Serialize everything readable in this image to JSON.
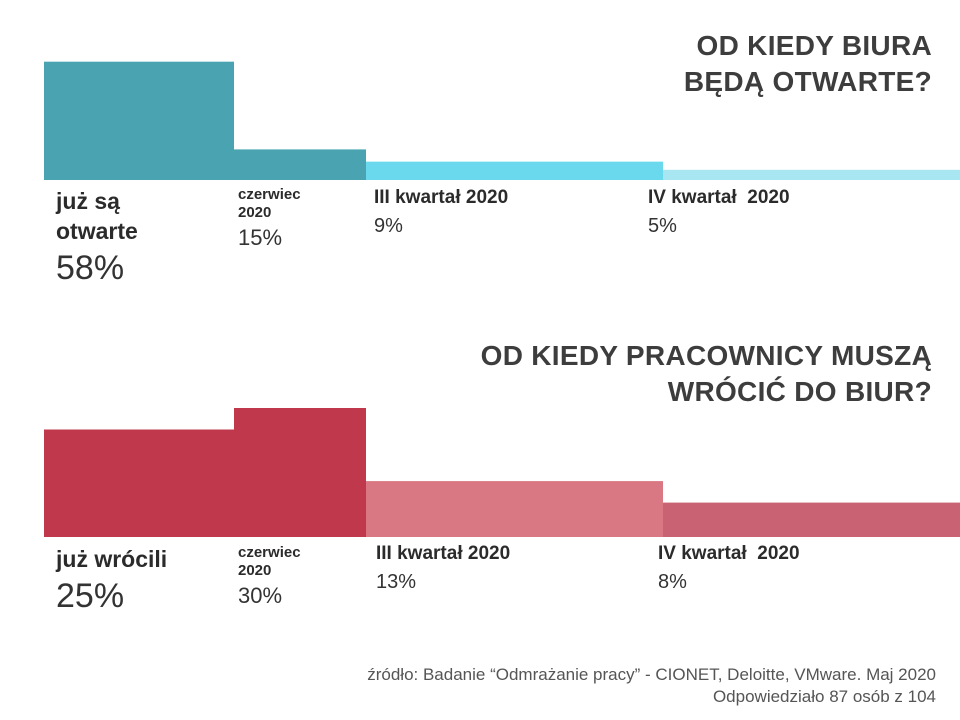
{
  "charts": [
    {
      "title_lines": [
        "OD KIEDY BIURA",
        "BĘDĄ OTWARTE?"
      ],
      "labels": [
        {
          "category": "już są otwarte",
          "value": "58%"
        },
        {
          "category": "czerwiec 2020",
          "value": "15%"
        },
        {
          "category": "III kwartał 2020",
          "value": "9%"
        },
        {
          "category": "IV kwartał  2020",
          "value": "5%"
        }
      ]
    },
    {
      "title_lines": [
        "OD KIEDY PRACOWNICY MUSZĄ",
        "WRÓCIĆ DO BIUR?"
      ],
      "labels": [
        {
          "category": "już wrócili",
          "value": "25%"
        },
        {
          "category": "czerwiec 2020",
          "value": "30%"
        },
        {
          "category": "III kwartał 2020",
          "value": "13%"
        },
        {
          "category": "IV kwartał  2020",
          "value": "8%"
        }
      ]
    }
  ],
  "source": {
    "line1": "źródło: Badanie “Odmrażanie pracy” - CIONET, Deloitte, VMware. Maj 2020",
    "line2": "Odpowiedziało 87 osób z 104"
  },
  "chart_data": [
    {
      "type": "bar",
      "title": "OD KIEDY BIURA BĘDĄ OTWARTE?",
      "categories": [
        "już są otwarte",
        "czerwiec 2020",
        "III kwartał 2020",
        "IV kwartał  2020"
      ],
      "values": [
        58,
        15,
        9,
        5
      ],
      "unit": "%",
      "colors": [
        "#4aa3b0",
        "#4aa3b0",
        "#6ad9ee",
        "#a8e6f1"
      ]
    },
    {
      "type": "bar",
      "title": "OD KIEDY PRACOWNICY MUSZĄ WRÓCIĆ DO BIUR?",
      "categories": [
        "już wrócili",
        "czerwiec 2020",
        "III kwartał 2020",
        "IV kwartał  2020"
      ],
      "values": [
        25,
        30,
        13,
        8
      ],
      "unit": "%",
      "colors": [
        "#c0384b",
        "#c0384b",
        "#d97782",
        "#c96272"
      ]
    }
  ]
}
